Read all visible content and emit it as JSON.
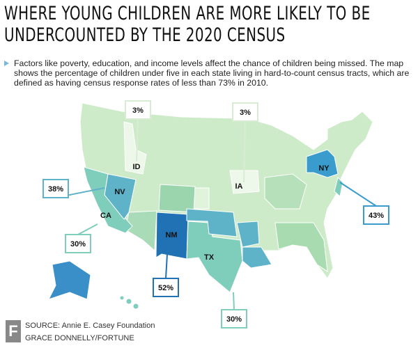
{
  "header": {
    "title": "WHERE YOUNG CHILDREN ARE MORE LIKELY TO BE UNDERCOUNTED BY THE 2020 CENSUS",
    "description": "Factors like poverty, education, and income levels affect the chance of children being missed. The map shows the percentage of children under five in each state living in hard-to-count census tracts, which are defined as having census response rates of less than 73% in 2010."
  },
  "callouts": [
    {
      "state": "ID",
      "value": "3%"
    },
    {
      "state": "IA",
      "value": "3%"
    },
    {
      "state": "NV",
      "value": "38%"
    },
    {
      "state": "NY",
      "value": "43%"
    },
    {
      "state": "CA",
      "value": "30%"
    },
    {
      "state": "NM",
      "value": "52%"
    },
    {
      "state": "TX",
      "value": "30%"
    }
  ],
  "footer": {
    "logo": "F",
    "source": "SOURCE: Annie E. Casey Foundation",
    "credit": "GRACE DONNELLY/FORTUNE"
  }
}
